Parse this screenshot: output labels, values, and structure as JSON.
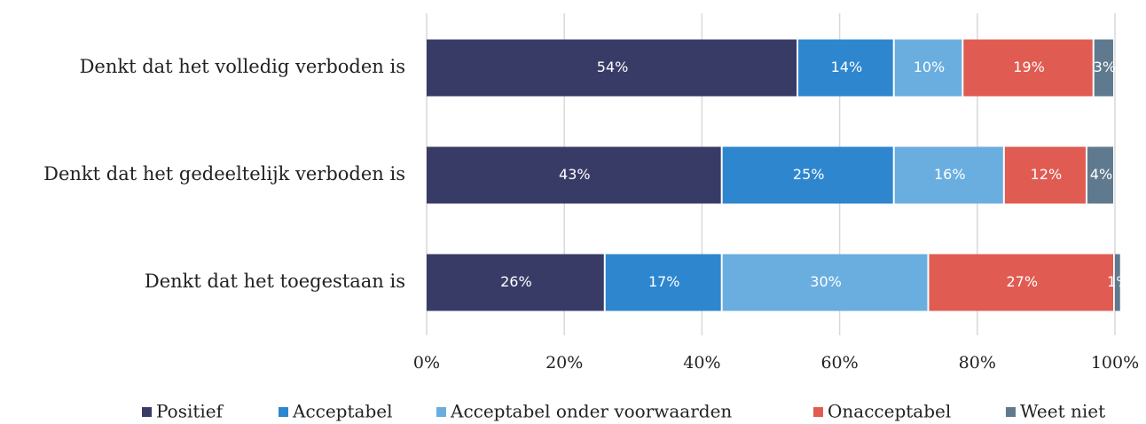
{
  "chart_data": {
    "type": "stacked_barh",
    "categories": [
      "Denkt dat het volledig verboden is",
      "Denkt dat het gedeeltelijk verboden is",
      "Denkt dat het toegestaan is"
    ],
    "series": [
      {
        "name": "Positief",
        "color": "#393b67",
        "values": [
          54,
          43,
          26
        ],
        "value_labels": [
          "54%",
          "43%",
          "26%"
        ]
      },
      {
        "name": "Acceptabel",
        "color": "#2e86cf",
        "values": [
          14,
          25,
          17
        ],
        "value_labels": [
          "14%",
          "25%",
          "17%"
        ]
      },
      {
        "name": "Acceptabel onder voorwaarden",
        "color": "#6aaee0",
        "values": [
          10,
          16,
          30
        ],
        "value_labels": [
          "10%",
          "16%",
          "30%"
        ]
      },
      {
        "name": "Onacceptabel",
        "color": "#e05c52",
        "values": [
          19,
          12,
          27
        ],
        "value_labels": [
          "19%",
          "12%",
          "27%"
        ]
      },
      {
        "name": "Weet niet",
        "color": "#5f7a8e",
        "values": [
          3,
          4,
          1
        ],
        "value_labels": [
          "3%",
          "4%",
          "1%"
        ]
      }
    ],
    "xlim": [
      0,
      100
    ],
    "xticks": [
      {
        "value": 0,
        "label": "0%"
      },
      {
        "value": 20,
        "label": "20%"
      },
      {
        "value": 40,
        "label": "40%"
      },
      {
        "value": 60,
        "label": "60%"
      },
      {
        "value": 80,
        "label": "80%"
      },
      {
        "value": 100,
        "label": "100%"
      }
    ],
    "grid": true,
    "legend": "bottom"
  }
}
